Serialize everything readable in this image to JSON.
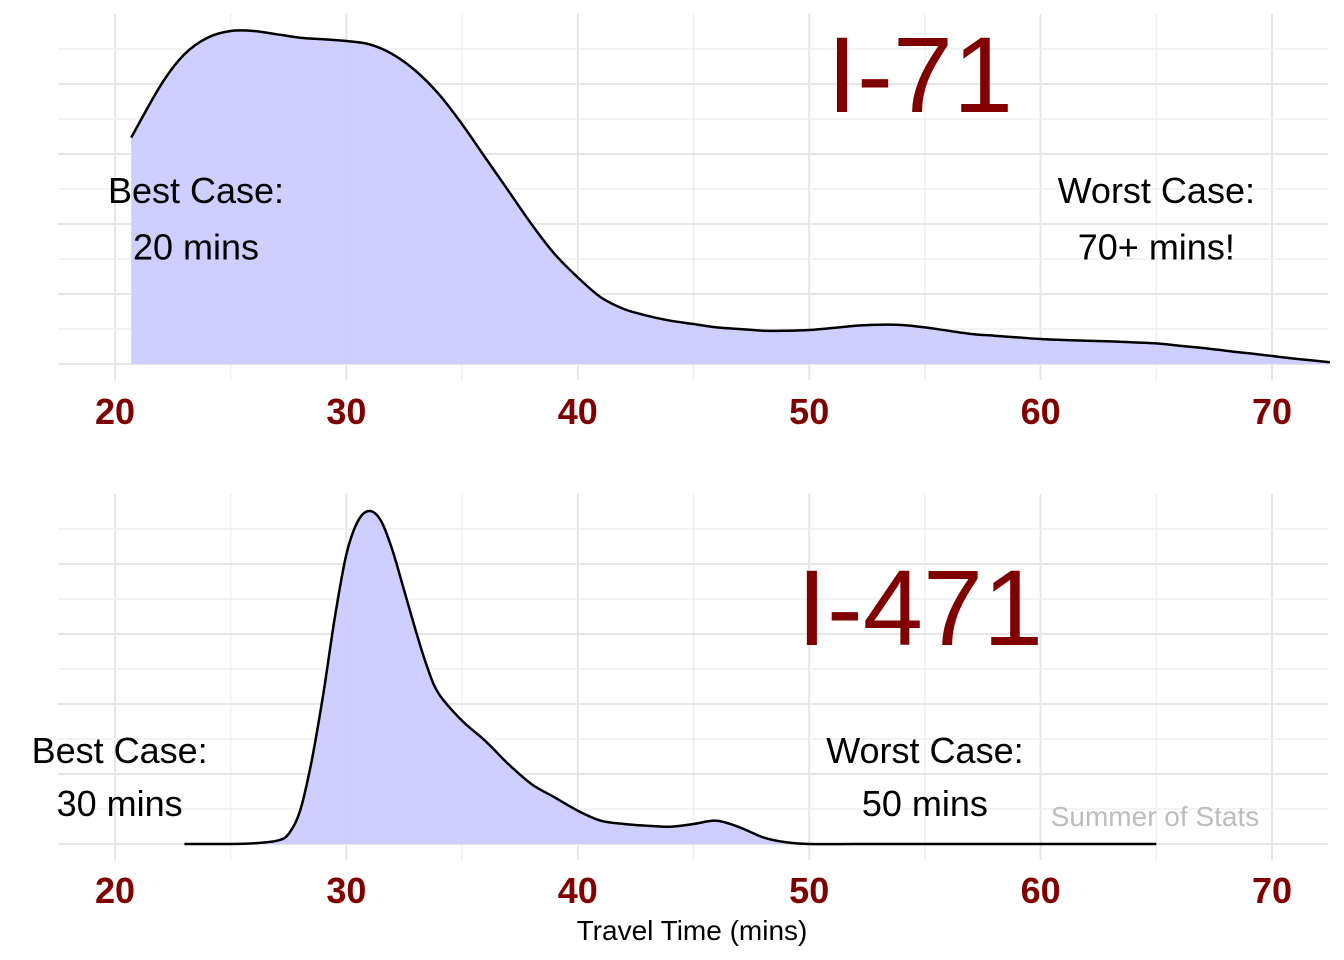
{
  "chart_data": [
    {
      "type": "area",
      "title": "",
      "route_label": "I-71",
      "xlabel": "",
      "ylabel": "",
      "xlim": [
        17.5,
        72.5
      ],
      "ylim": [
        0,
        1.0
      ],
      "x_ticks": [
        20,
        30,
        40,
        50,
        60,
        70
      ],
      "x_tick_labels": [
        "20",
        "30",
        "40",
        "50",
        "60",
        "70"
      ],
      "grid": true,
      "fill_color": "#ccccff",
      "line_color": "#000000",
      "series": [
        {
          "x": [
            20.7,
            22,
            23,
            24,
            25,
            26,
            27,
            28,
            29,
            30,
            31,
            32,
            33,
            34,
            35,
            36,
            37,
            38,
            39,
            40,
            41,
            42,
            43,
            44,
            45,
            46,
            47,
            48,
            49,
            50,
            51,
            52,
            53,
            54,
            55,
            56,
            57,
            58,
            59,
            60,
            61,
            62,
            63,
            64,
            65,
            66,
            67,
            68,
            69,
            70,
            71,
            72.5
          ],
          "y": [
            0.68,
            0.84,
            0.93,
            0.98,
            1.0,
            1.0,
            0.99,
            0.98,
            0.975,
            0.97,
            0.96,
            0.93,
            0.88,
            0.81,
            0.72,
            0.62,
            0.52,
            0.42,
            0.33,
            0.26,
            0.2,
            0.165,
            0.145,
            0.13,
            0.12,
            0.11,
            0.105,
            0.1,
            0.1,
            0.102,
            0.108,
            0.115,
            0.118,
            0.117,
            0.11,
            0.1,
            0.09,
            0.085,
            0.08,
            0.075,
            0.072,
            0.07,
            0.068,
            0.065,
            0.062,
            0.055,
            0.048,
            0.04,
            0.032,
            0.024,
            0.016,
            0.005
          ]
        }
      ],
      "annotations": [
        {
          "lines": [
            "Best Case:",
            "20 mins"
          ],
          "x": 23.5,
          "y": [
            0.52,
            0.35
          ]
        },
        {
          "lines": [
            "Worst Case:",
            "70+ mins!"
          ],
          "x": 65.0,
          "y": [
            0.52,
            0.35
          ]
        }
      ]
    },
    {
      "type": "area",
      "title": "",
      "route_label": "I-471",
      "xlabel": "Travel Time (mins)",
      "ylabel": "",
      "xlim": [
        17.5,
        72.5
      ],
      "ylim": [
        0,
        1.0
      ],
      "x_ticks": [
        20,
        30,
        40,
        50,
        60,
        70
      ],
      "x_tick_labels": [
        "20",
        "30",
        "40",
        "50",
        "60",
        "70"
      ],
      "grid": true,
      "fill_color": "#ccccff",
      "line_color": "#000000",
      "series": [
        {
          "x": [
            23,
            25,
            26,
            27,
            27.5,
            28,
            28.5,
            29,
            29.5,
            30,
            30.5,
            31,
            31.5,
            32,
            32.5,
            33,
            33.5,
            34,
            35,
            36,
            37,
            38,
            39,
            40,
            41,
            42,
            43,
            44,
            45,
            46,
            47,
            48,
            49,
            50,
            52,
            55,
            60,
            65
          ],
          "y": [
            0,
            0,
            0.002,
            0.01,
            0.03,
            0.1,
            0.25,
            0.45,
            0.68,
            0.87,
            0.97,
            1.0,
            0.97,
            0.88,
            0.76,
            0.64,
            0.53,
            0.45,
            0.37,
            0.31,
            0.24,
            0.18,
            0.14,
            0.1,
            0.07,
            0.06,
            0.055,
            0.052,
            0.06,
            0.07,
            0.05,
            0.02,
            0.005,
            0,
            0,
            0,
            0,
            0
          ]
        }
      ],
      "annotations": [
        {
          "lines": [
            "Best Case:",
            "30 mins"
          ],
          "x": 20.2,
          "y": [
            0.28,
            0.12
          ]
        },
        {
          "lines": [
            "Worst Case:",
            "50 mins"
          ],
          "x": 55.0,
          "y": [
            0.28,
            0.12
          ]
        }
      ]
    }
  ],
  "watermark": "Summer of Stats"
}
